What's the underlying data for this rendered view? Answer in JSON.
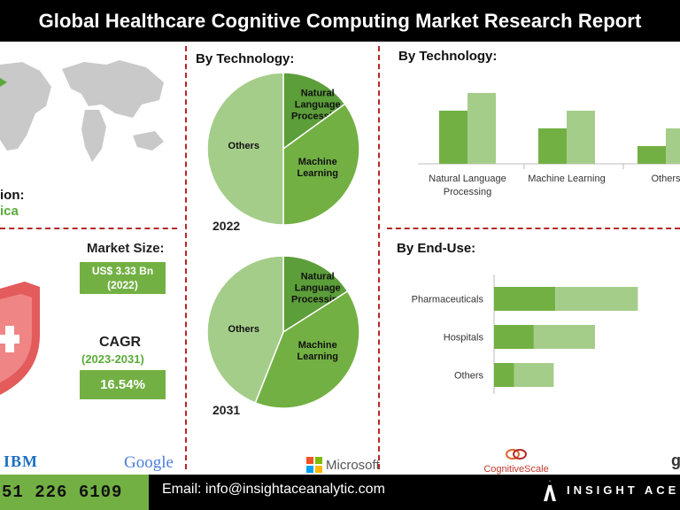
{
  "title": "Global Healthcare Cognitive Computing Market Research Report",
  "region": {
    "label": "ion:",
    "value": "ica"
  },
  "market_size": {
    "label": "Market Size:",
    "value": "US$ 3.33 Bn",
    "year": "(2022)"
  },
  "cagr": {
    "label": "CAGR",
    "period": "(2023-2031)",
    "value": "16.54%"
  },
  "colors": {
    "dark_green": "#5c9e3a",
    "mid_green": "#72b043",
    "light_green": "#a5cd8a",
    "pale_green": "#8dc070",
    "accent_red": "#b5262a"
  },
  "chart_data": [
    {
      "type": "pie",
      "title": "By Technology:",
      "subtitle": "2022",
      "slices": [
        {
          "label": "Natural Language Processing",
          "value": 15
        },
        {
          "label": "Machine Learning",
          "value": 35
        },
        {
          "label": "Others",
          "value": 50
        }
      ]
    },
    {
      "type": "pie",
      "subtitle": "2031",
      "slices": [
        {
          "label": "Natural Language Processing",
          "value": 16
        },
        {
          "label": "Machine Learning",
          "value": 40
        },
        {
          "label": "Others",
          "value": 44
        }
      ]
    },
    {
      "type": "bar",
      "title": "By Technology:",
      "categories": [
        "Natural Language Processing",
        "Machine Learning",
        "Others"
      ],
      "series": [
        {
          "values": [
            60,
            40,
            20
          ]
        },
        {
          "values": [
            80,
            60,
            40
          ]
        }
      ],
      "ylim": [
        0,
        100
      ],
      "grid": false
    },
    {
      "type": "bar",
      "orientation": "horizontal",
      "stacked": true,
      "title": "By End-Use:",
      "categories": [
        "Pharmaceuticals",
        "Hospitals",
        "Others"
      ],
      "series": [
        {
          "values": [
            40,
            26,
            13
          ]
        },
        {
          "values": [
            54,
            40,
            26
          ]
        }
      ],
      "xlim": [
        0,
        110
      ],
      "grid": false
    }
  ],
  "logos": {
    "ibm": "IBM",
    "google": "Google",
    "microsoft": "Microsoft",
    "cognitivescale": "CognitiveScale",
    "partial": "g"
  },
  "footer": {
    "phone": "51 226 6109",
    "email": "Email: info@insightaceanalytic.com",
    "brand": "INSIGHT ACE"
  }
}
